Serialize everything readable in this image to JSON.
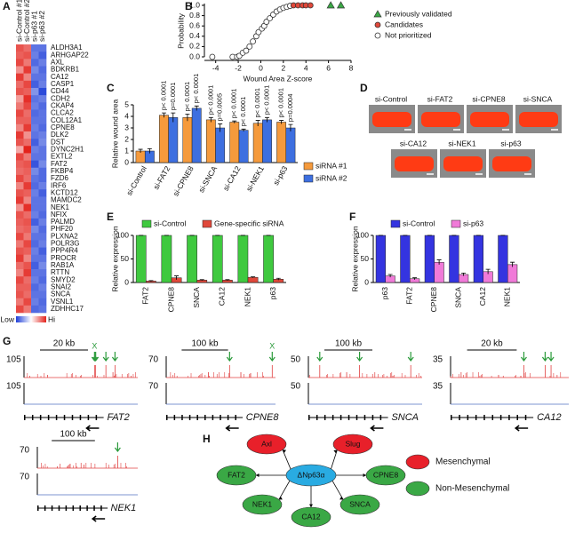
{
  "chart_data": [
    {
      "type": "heatmap",
      "panel": "A",
      "columns": [
        "si-Control #1",
        "si-Control #2",
        "si-p63 #1",
        "si-p63 #2"
      ],
      "rows": [
        "ALDH3A1",
        "ARHGAP22",
        "AXL",
        "BDKRB1",
        "CA12",
        "CASP1",
        "CD44",
        "CDH2",
        "CKAP4",
        "CLCA2",
        "COL12A1",
        "CPNE8",
        "DLK2",
        "DST",
        "DYNC2H1",
        "EXTL2",
        "FAT2",
        "FKBP4",
        "FZD6",
        "IRF6",
        "KCTD12",
        "MAMDC2",
        "NEK1",
        "NFIX",
        "PALMD",
        "PHF20",
        "PLXNA2",
        "POLR3G",
        "PPP4R4",
        "PROCR",
        "RAB1A",
        "RTTN",
        "SMYD2",
        "SNAI2",
        "SNCA",
        "VSNL1",
        "ZDHHC17"
      ],
      "values": [
        [
          1.4,
          1.2,
          -1.3,
          -1.3
        ],
        [
          1.3,
          1.4,
          -1.2,
          -1.5
        ],
        [
          1.5,
          1.1,
          -1.4,
          -1.2
        ],
        [
          0.9,
          1.6,
          -1.1,
          -1.4
        ],
        [
          1.6,
          1.0,
          -1.3,
          -1.3
        ],
        [
          1.2,
          1.5,
          -1.5,
          -1.2
        ],
        [
          1.4,
          1.3,
          -1.0,
          -1.7
        ],
        [
          0.8,
          1.7,
          -1.3,
          -1.2
        ],
        [
          1.1,
          1.5,
          -1.2,
          -1.4
        ],
        [
          1.5,
          1.2,
          -1.4,
          -1.3
        ],
        [
          1.3,
          1.3,
          -1.3,
          -1.3
        ],
        [
          1.0,
          1.6,
          -1.2,
          -1.4
        ],
        [
          1.6,
          0.9,
          -1.3,
          -1.2
        ],
        [
          1.4,
          1.2,
          -1.5,
          -1.1
        ],
        [
          0.7,
          1.8,
          -1.2,
          -1.3
        ],
        [
          1.5,
          1.1,
          -1.3,
          -1.3
        ],
        [
          1.3,
          1.4,
          -1.6,
          -1.1
        ],
        [
          1.2,
          1.3,
          -1.1,
          -1.4
        ],
        [
          1.5,
          1.2,
          -1.3,
          -1.4
        ],
        [
          1.0,
          1.6,
          -1.4,
          -1.2
        ],
        [
          1.4,
          1.3,
          -1.2,
          -1.5
        ],
        [
          1.6,
          1.0,
          -1.3,
          -1.3
        ],
        [
          0.9,
          1.7,
          -1.3,
          -1.3
        ],
        [
          1.4,
          1.2,
          -1.2,
          -1.4
        ],
        [
          1.3,
          1.4,
          -1.5,
          -1.2
        ],
        [
          1.2,
          1.3,
          -1.1,
          -1.4
        ],
        [
          1.5,
          1.1,
          -1.3,
          -1.3
        ],
        [
          1.1,
          1.5,
          -1.4,
          -1.2
        ],
        [
          1.4,
          1.3,
          -1.2,
          -1.5
        ],
        [
          1.6,
          1.0,
          -1.3,
          -1.3
        ],
        [
          1.2,
          1.4,
          -1.5,
          -1.1
        ],
        [
          1.0,
          1.6,
          -1.3,
          -1.3
        ],
        [
          1.5,
          1.2,
          -1.2,
          -1.4
        ],
        [
          1.3,
          1.3,
          -1.4,
          -1.2
        ],
        [
          1.4,
          1.2,
          -1.3,
          -1.3
        ],
        [
          1.1,
          1.5,
          -1.2,
          -1.4
        ],
        [
          1.5,
          1.1,
          -1.4,
          -1.3
        ]
      ],
      "colors": [
        "#1f3fd8",
        "#ffffff",
        "#e3231c"
      ],
      "colorbar_labels": [
        "Low",
        "Hi"
      ]
    },
    {
      "type": "scatter",
      "panel": "B",
      "xlabel": "Wound Area Z-score",
      "ylabel": "Probability",
      "xlim": [
        -5,
        8
      ],
      "xticks": [
        -4,
        -2,
        0,
        2,
        4,
        6,
        8
      ],
      "ylim": [
        0,
        1
      ],
      "yticks": [
        {
          "value": 0,
          "label": "0.0"
        },
        {
          "value": 0.2,
          "label": "0.2"
        },
        {
          "value": 0.4,
          "label": "0.4"
        },
        {
          "value": 0.6,
          "label": "0.6"
        },
        {
          "value": 0.8,
          "label": "0.8"
        },
        {
          "value": 1,
          "label": "1.0"
        }
      ],
      "series": [
        {
          "name": "Previously validated",
          "color": "#3aa845",
          "marker": "triangle",
          "x": [
            6.2,
            7.1
          ],
          "values": [
            1,
            1
          ]
        },
        {
          "name": "Candidates",
          "color": "#e0483a",
          "marker": "circle",
          "x": [
            2.9,
            3.3,
            3.7,
            4.0,
            4.4
          ],
          "values": [
            1,
            1,
            1,
            1,
            1
          ]
        },
        {
          "name": "Not prioritized",
          "color": "#ffffff",
          "marker": "circle",
          "x": [
            -4.3,
            -2.5,
            -2.1,
            -1.9,
            -1.6,
            -1.3,
            -1.0,
            -0.7,
            -0.4,
            -0.2,
            0.1,
            0.3,
            0.5,
            0.8,
            1.1,
            1.4,
            1.7,
            2.0,
            2.3,
            2.6
          ],
          "values": [
            0,
            0,
            0,
            0.02,
            0.08,
            0.12,
            0.2,
            0.3,
            0.4,
            0.48,
            0.55,
            0.6,
            0.68,
            0.75,
            0.82,
            0.88,
            0.92,
            0.95,
            0.97,
            0.99
          ]
        }
      ]
    },
    {
      "type": "bar",
      "panel": "C",
      "ylabel": "Relative wound area",
      "ylim": [
        0,
        5
      ],
      "yticks": [
        0,
        1,
        2,
        3,
        4,
        5
      ],
      "categories": [
        "si-Control",
        "si-FAT2",
        "si-CPNE8",
        "si-SNCA",
        "si-CA12",
        "si-NEK1",
        "si-p63"
      ],
      "series": [
        {
          "name": "siRNA #1",
          "color": "#f59a3c",
          "values": [
            1.0,
            4.1,
            3.9,
            3.7,
            3.5,
            3.4,
            3.5
          ],
          "errors": [
            0.15,
            0.2,
            0.3,
            0.2,
            0.1,
            0.25,
            0.15
          ],
          "p_values": [
            null,
            "p< 0.0001",
            "p< 0.0001",
            "p< 0.0001",
            "p< 0.0001",
            "p< 0.0001",
            "p< 0.0001"
          ]
        },
        {
          "name": "siRNA #2",
          "color": "#3d6fe0",
          "values": [
            1.0,
            3.9,
            4.7,
            3.0,
            2.8,
            3.7,
            3.0
          ],
          "errors": [
            0.2,
            0.4,
            0.2,
            0.35,
            0.1,
            0.2,
            0.3
          ],
          "p_values": [
            null,
            "p=0.0001",
            "p< 0.0001",
            "p=0.0005",
            "p< 0.0001",
            "p< 0.0001",
            "p=0.0004"
          ]
        }
      ]
    },
    {
      "type": "bar",
      "panel": "E",
      "ylabel": "Relative expression",
      "ylim": [
        0,
        100
      ],
      "yticks": [
        0,
        50,
        100
      ],
      "categories": [
        "FAT2",
        "CPNE8",
        "SNCA",
        "CA12",
        "NEK1",
        "p63"
      ],
      "series": [
        {
          "name": "si-Control",
          "color": "#3fc93f",
          "values": [
            100,
            100,
            100,
            100,
            100,
            100
          ],
          "errors": [
            0,
            0,
            0,
            0,
            0,
            0
          ]
        },
        {
          "name": "Gene-specific siRNA",
          "color": "#e0483a",
          "values": [
            3,
            10,
            5,
            5,
            11,
            7
          ],
          "errors": [
            1,
            4,
            1,
            1,
            1,
            2
          ]
        }
      ]
    },
    {
      "type": "bar",
      "panel": "F",
      "ylabel": "Relative expression",
      "ylim": [
        0,
        100
      ],
      "yticks": [
        0,
        50,
        100
      ],
      "categories": [
        "p63",
        "FAT2",
        "CPNE8",
        "SNCA",
        "CA12",
        "NEK1"
      ],
      "series": [
        {
          "name": "si-Control",
          "color": "#3434e0",
          "values": [
            100,
            100,
            100,
            100,
            100,
            100
          ],
          "errors": [
            0,
            0,
            0,
            0,
            0,
            0
          ]
        },
        {
          "name": "si-p63",
          "color": "#f07ad8",
          "values": [
            14,
            8,
            43,
            17,
            23,
            38
          ],
          "errors": [
            3,
            2,
            5,
            3,
            5,
            5
          ]
        }
      ]
    }
  ],
  "wound_images": {
    "panel": "D",
    "labels": [
      "si-Control",
      "si-FAT2",
      "si-CPNE8",
      "si-SNCA",
      "si-CA12",
      "si-NEK1",
      "si-p63"
    ]
  },
  "tracks": {
    "panel": "G",
    "items": [
      {
        "gene": "FAT2",
        "scale_bar": "20 kb",
        "ymax": 105,
        "marker": "X"
      },
      {
        "gene": "CPNE8",
        "scale_bar": "100 kb",
        "ymax": 70,
        "marker": "X"
      },
      {
        "gene": "SNCA",
        "scale_bar": "100 kb",
        "ymax": 50
      },
      {
        "gene": "CA12",
        "scale_bar": "20 kb",
        "ymax": 35
      },
      {
        "gene": "NEK1",
        "scale_bar": "100 kb",
        "ymax": 70
      }
    ]
  },
  "network": {
    "panel": "H",
    "center": "ΔNp63α",
    "center_color": "#29abe2",
    "nodes": [
      {
        "label": "Axl",
        "color": "#e8202a"
      },
      {
        "label": "Slug",
        "color": "#e8202a"
      },
      {
        "label": "FAT2",
        "color": "#3aa845"
      },
      {
        "label": "CPNE8",
        "color": "#3aa845"
      },
      {
        "label": "NEK1",
        "color": "#3aa845"
      },
      {
        "label": "CA12",
        "color": "#3aa845"
      },
      {
        "label": "SNCA",
        "color": "#3aa845"
      }
    ],
    "legend": [
      {
        "label": "Mesenchymal",
        "color": "#e8202a"
      },
      {
        "label": "Non-Mesenchymal",
        "color": "#3aa845"
      }
    ]
  }
}
